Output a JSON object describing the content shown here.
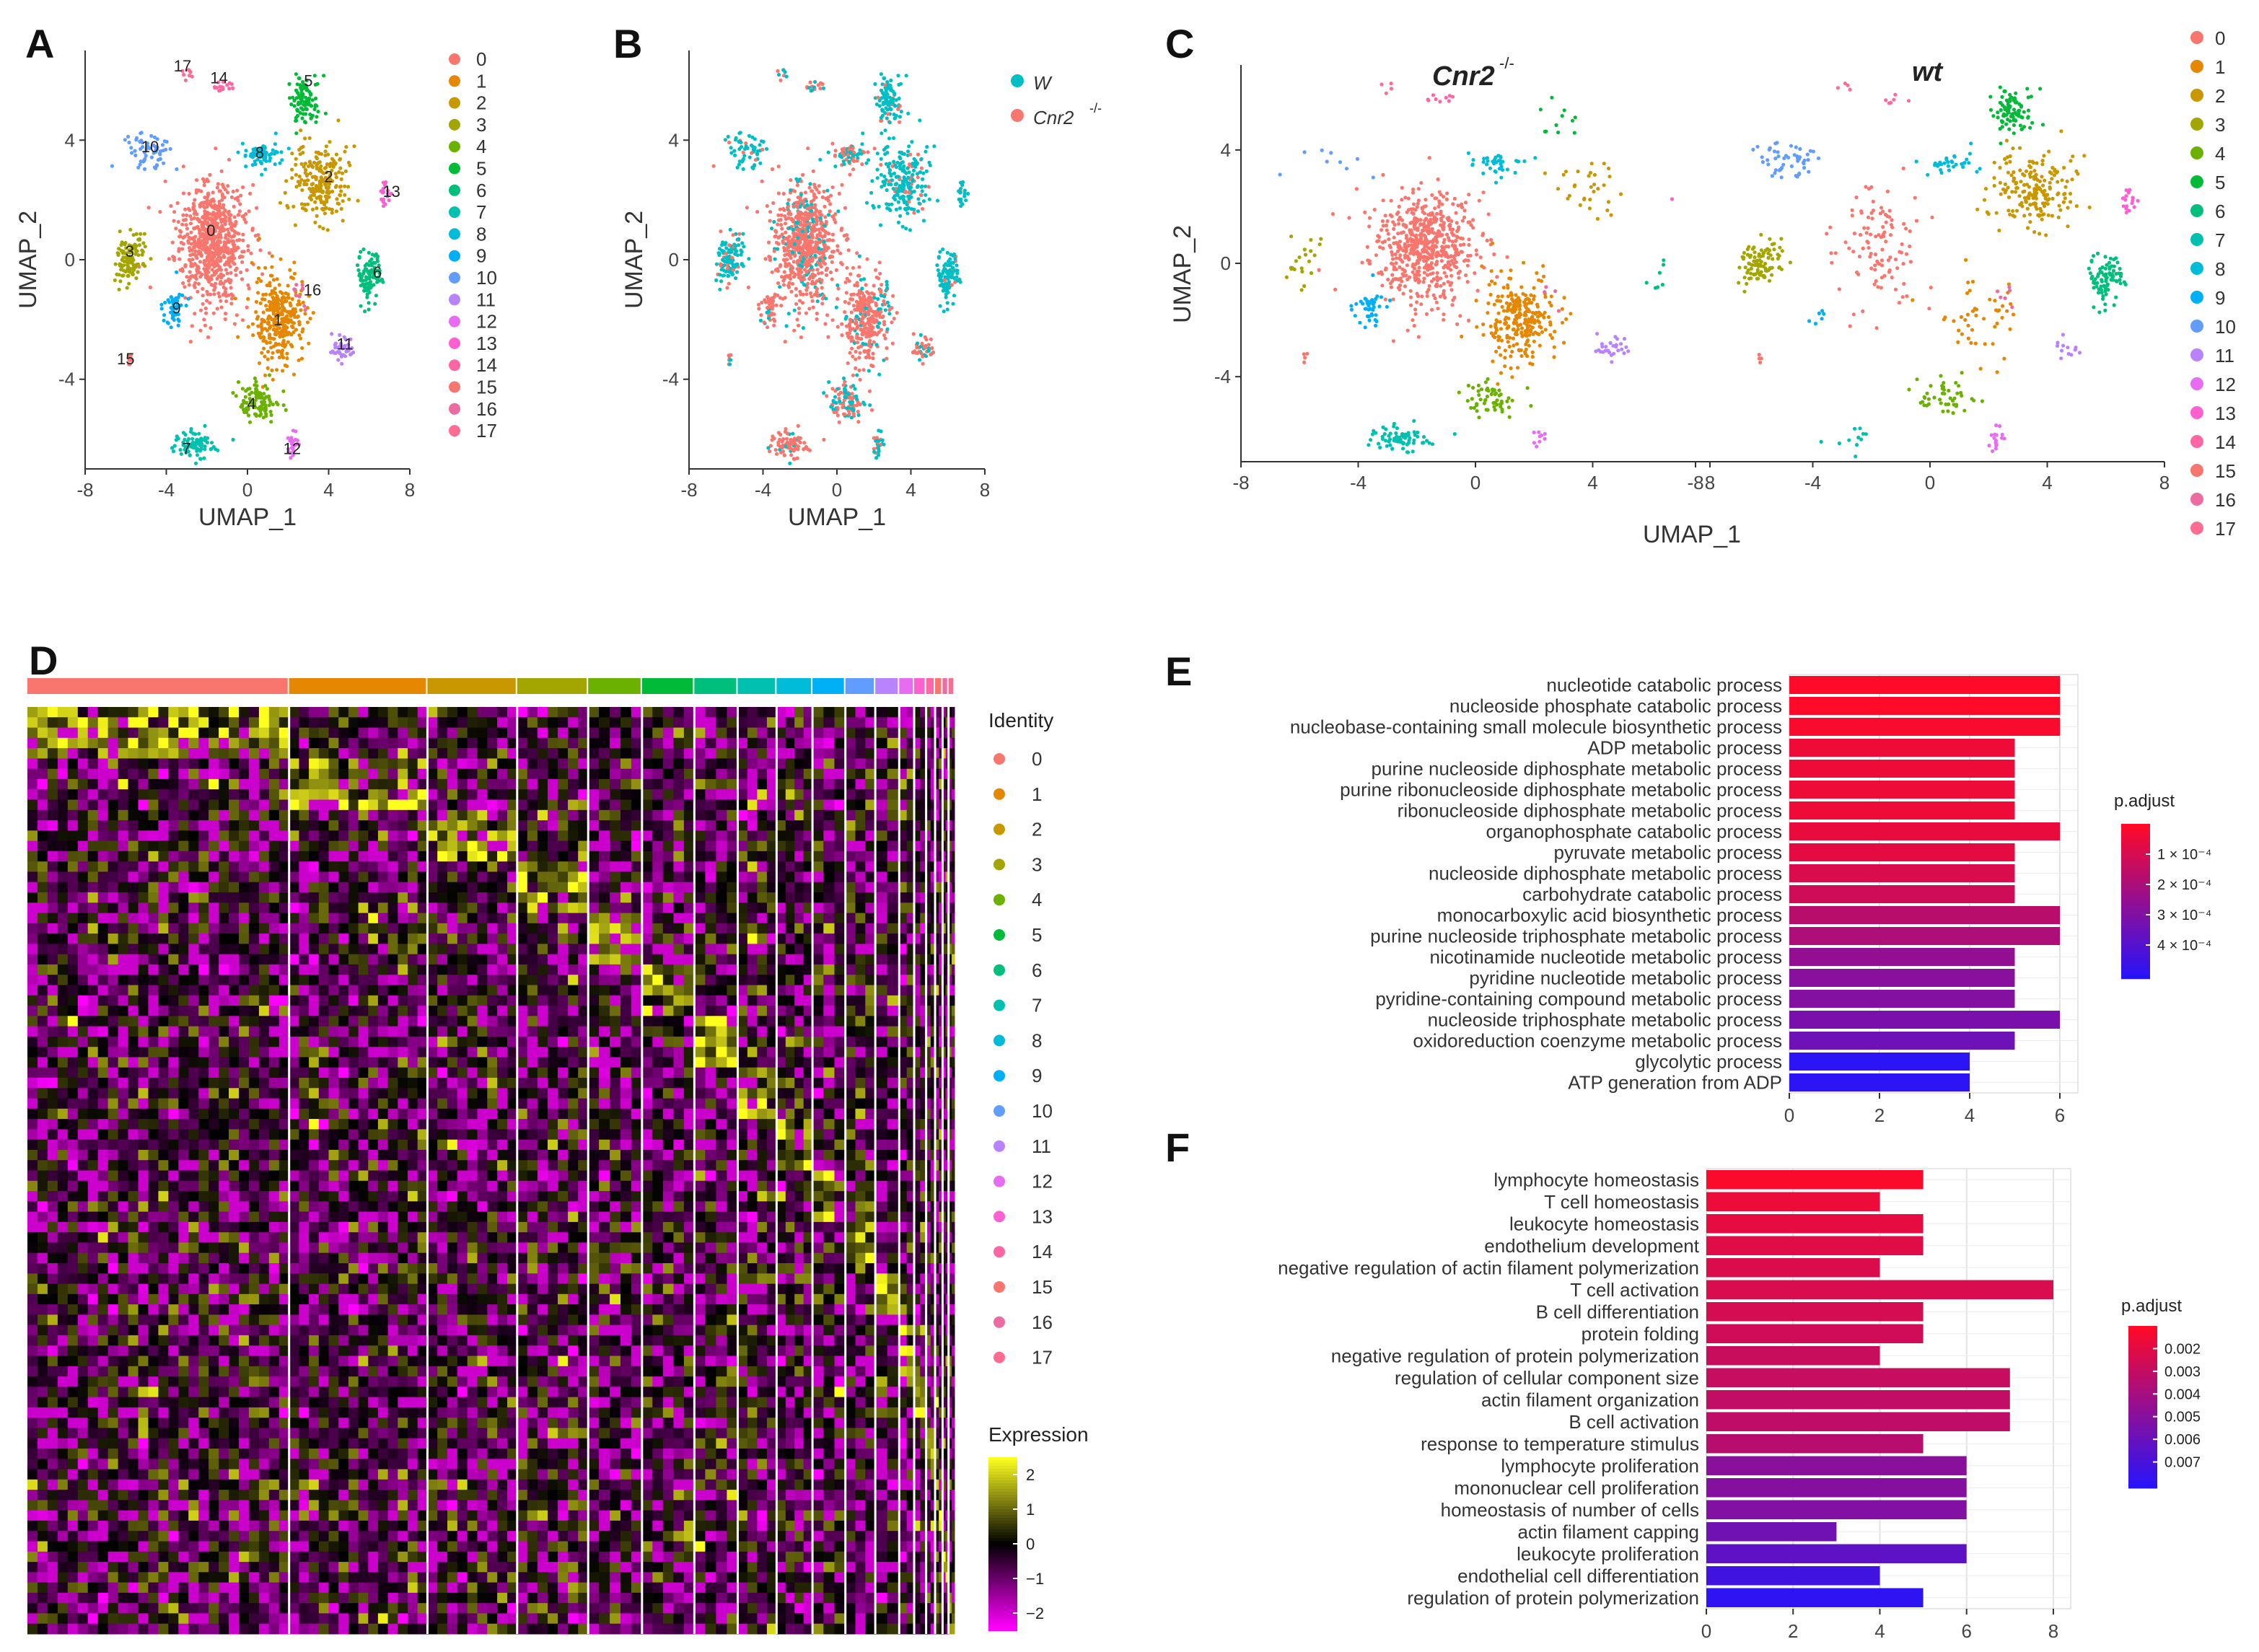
{
  "panel_labels": [
    "A",
    "B",
    "C",
    "D",
    "E",
    "F"
  ],
  "cluster_colors": [
    "#F8766D",
    "#E58700",
    "#C99800",
    "#A3A500",
    "#6BB100",
    "#00BA38",
    "#00BF7D",
    "#00C0AF",
    "#00BCD8",
    "#00B0F6",
    "#619CFF",
    "#B983FF",
    "#E76BF3",
    "#FD61D1",
    "#FF67A4",
    "#F8766D",
    "#EC6BA0",
    "#FF6C91"
  ],
  "chart_data": [
    {
      "id": "A",
      "type": "scatter",
      "title": "",
      "xlabel": "UMAP_1",
      "ylabel": "UMAP_2",
      "xlim": [
        -8,
        8
      ],
      "ylim": [
        -7,
        7
      ],
      "xticks": [
        "-8",
        "-4",
        "0",
        "4",
        "8"
      ],
      "yticks": [
        "4",
        "0",
        "-4"
      ],
      "legend_title": "",
      "legend": [
        "0",
        "1",
        "2",
        "3",
        "4",
        "5",
        "6",
        "7",
        "8",
        "9",
        "10",
        "11",
        "12",
        "13",
        "14",
        "15",
        "16",
        "17"
      ],
      "cluster_labels": [
        {
          "label": "0",
          "x": -1.8,
          "y": 0.8
        },
        {
          "label": "1",
          "x": 1.5,
          "y": -2.2
        },
        {
          "label": "2",
          "x": 4.0,
          "y": 2.6
        },
        {
          "label": "3",
          "x": -5.8,
          "y": 0.1
        },
        {
          "label": "4",
          "x": 0.2,
          "y": -5.0
        },
        {
          "label": "5",
          "x": 3.0,
          "y": 5.8
        },
        {
          "label": "6",
          "x": 6.4,
          "y": -0.6
        },
        {
          "label": "7",
          "x": -3.0,
          "y": -6.5
        },
        {
          "label": "8",
          "x": 0.6,
          "y": 3.4
        },
        {
          "label": "9",
          "x": -3.5,
          "y": -1.8
        },
        {
          "label": "10",
          "x": -4.8,
          "y": 3.6
        },
        {
          "label": "11",
          "x": 4.8,
          "y": -3.0
        },
        {
          "label": "12",
          "x": 2.2,
          "y": -6.5
        },
        {
          "label": "13",
          "x": 7.1,
          "y": 2.1
        },
        {
          "label": "14",
          "x": -1.4,
          "y": 5.9
        },
        {
          "label": "15",
          "x": -6.0,
          "y": -3.5
        },
        {
          "label": "16",
          "x": 3.2,
          "y": -1.2
        },
        {
          "label": "17",
          "x": -3.2,
          "y": 6.3
        }
      ]
    },
    {
      "id": "B",
      "type": "scatter",
      "xlabel": "UMAP_1",
      "ylabel": "UMAP_2",
      "xlim": [
        -8,
        8
      ],
      "ylim": [
        -7,
        7
      ],
      "xticks": [
        "-8",
        "-4",
        "0",
        "4",
        "8"
      ],
      "yticks": [
        "4",
        "0",
        "-4"
      ],
      "legend": [
        {
          "name": "W",
          "color": "#00BFC4"
        },
        {
          "name": "Cnr2",
          "sup": "-/-",
          "color": "#F8766D"
        }
      ]
    },
    {
      "id": "C",
      "type": "scatter",
      "facets": [
        {
          "title": "Cnr2",
          "sup": "-/-"
        },
        {
          "title": "wt",
          "sup": ""
        }
      ],
      "xlabel": "UMAP_1",
      "ylabel": "UMAP_2",
      "xlim": [
        -8,
        8
      ],
      "ylim": [
        -7,
        7
      ],
      "xticks_left": [
        "-8",
        "-4",
        "0",
        "4",
        "8"
      ],
      "xticks_right": [
        "-8",
        "-4",
        "0",
        "4",
        "8"
      ],
      "yticks": [
        "4",
        "0",
        "-4"
      ],
      "legend": [
        "0",
        "1",
        "2",
        "3",
        "4",
        "5",
        "6",
        "7",
        "8",
        "9",
        "10",
        "11",
        "12",
        "13",
        "14",
        "15",
        "16",
        "17"
      ]
    },
    {
      "id": "D",
      "type": "heatmap",
      "identity_title": "Identity",
      "identities": [
        "0",
        "1",
        "2",
        "3",
        "4",
        "5",
        "6",
        "7",
        "8",
        "9",
        "10",
        "11",
        "12",
        "13",
        "14",
        "15",
        "16",
        "17"
      ],
      "group_widths": [
        350,
        185,
        120,
        95,
        72,
        70,
        58,
        52,
        48,
        44,
        40,
        32,
        20,
        16,
        12,
        10,
        8,
        8
      ],
      "expression_title": "Expression",
      "expression_ticks": [
        "2",
        "1",
        "0",
        "−1",
        "−2"
      ],
      "expression_range": [
        -2.5,
        2.5
      ]
    },
    {
      "id": "E",
      "type": "bar",
      "orientation": "horizontal",
      "categories": [
        "nucleotide catabolic process",
        "nucleoside phosphate catabolic process",
        "nucleobase-containing small molecule biosynthetic process",
        "ADP metabolic process",
        "purine nucleoside diphosphate metabolic process",
        "purine ribonucleoside diphosphate metabolic process",
        "ribonucleoside diphosphate metabolic process",
        "organophosphate catabolic process",
        "pyruvate metabolic process",
        "nucleoside diphosphate metabolic process",
        "carbohydrate catabolic process",
        "monocarboxylic acid biosynthetic process",
        "purine nucleoside triphosphate metabolic process",
        "nicotinamide nucleotide metabolic process",
        "pyridine nucleotide metabolic process",
        "pyridine-containing compound metabolic process",
        "nucleoside triphosphate metabolic process",
        "oxidoreduction coenzyme metabolic process",
        "glycolytic process",
        "ATP generation from ADP"
      ],
      "values": [
        6,
        6,
        6,
        5,
        5,
        5,
        5,
        6,
        5,
        5,
        5,
        6,
        6,
        5,
        5,
        5,
        6,
        5,
        4,
        4
      ],
      "p_adjust": [
        5e-05,
        5e-05,
        6e-05,
        8e-05,
        8e-05,
        8e-05,
        8e-05,
        9e-05,
        0.0001,
        0.00012,
        0.00014,
        0.00018,
        0.0002,
        0.00025,
        0.00027,
        0.00028,
        0.0003,
        0.00032,
        0.00044,
        0.00044
      ],
      "xlim": [
        0,
        6.4
      ],
      "xticks": [
        0,
        2,
        4,
        6
      ],
      "colorbar_title": "p.adjust",
      "colorbar_ticks": [
        "1 × 10⁻⁴",
        "2 × 10⁻⁴",
        "3 × 10⁻⁴",
        "4 × 10⁻⁴"
      ],
      "colorbar_range": [
        5e-05,
        0.00045
      ]
    },
    {
      "id": "F",
      "type": "bar",
      "orientation": "horizontal",
      "categories": [
        "lymphocyte homeostasis",
        "T cell homeostasis",
        "leukocyte homeostasis",
        "endothelium development",
        "negative regulation of actin filament polymerization",
        "T cell activation",
        "B cell differentiation",
        "protein folding",
        "negative regulation of protein polymerization",
        "regulation of cellular component size",
        "actin filament organization",
        "B cell activation",
        "response to temperature stimulus",
        "lymphocyte proliferation",
        "mononuclear cell proliferation",
        "homeostasis of number of cells",
        "actin filament capping",
        "leukocyte proliferation",
        "endothelial cell differentiation",
        "regulation of protein polymerization"
      ],
      "values": [
        5,
        4,
        5,
        5,
        4,
        8,
        5,
        5,
        4,
        7,
        7,
        7,
        5,
        6,
        6,
        6,
        3,
        6,
        4,
        5
      ],
      "p_adjust": [
        0.0016,
        0.002,
        0.0022,
        0.0024,
        0.0025,
        0.0026,
        0.0027,
        0.0028,
        0.003,
        0.0031,
        0.0032,
        0.0033,
        0.0035,
        0.0048,
        0.0049,
        0.005,
        0.0055,
        0.006,
        0.0068,
        0.0073
      ],
      "xlim": [
        0,
        8.4
      ],
      "xticks": [
        0,
        2,
        4,
        6,
        8
      ],
      "colorbar_title": "p.adjust",
      "colorbar_ticks": [
        "0.002",
        "0.003",
        "0.004",
        "0.005",
        "0.006",
        "0.007"
      ],
      "colorbar_range": [
        0.0015,
        0.0075
      ]
    }
  ]
}
